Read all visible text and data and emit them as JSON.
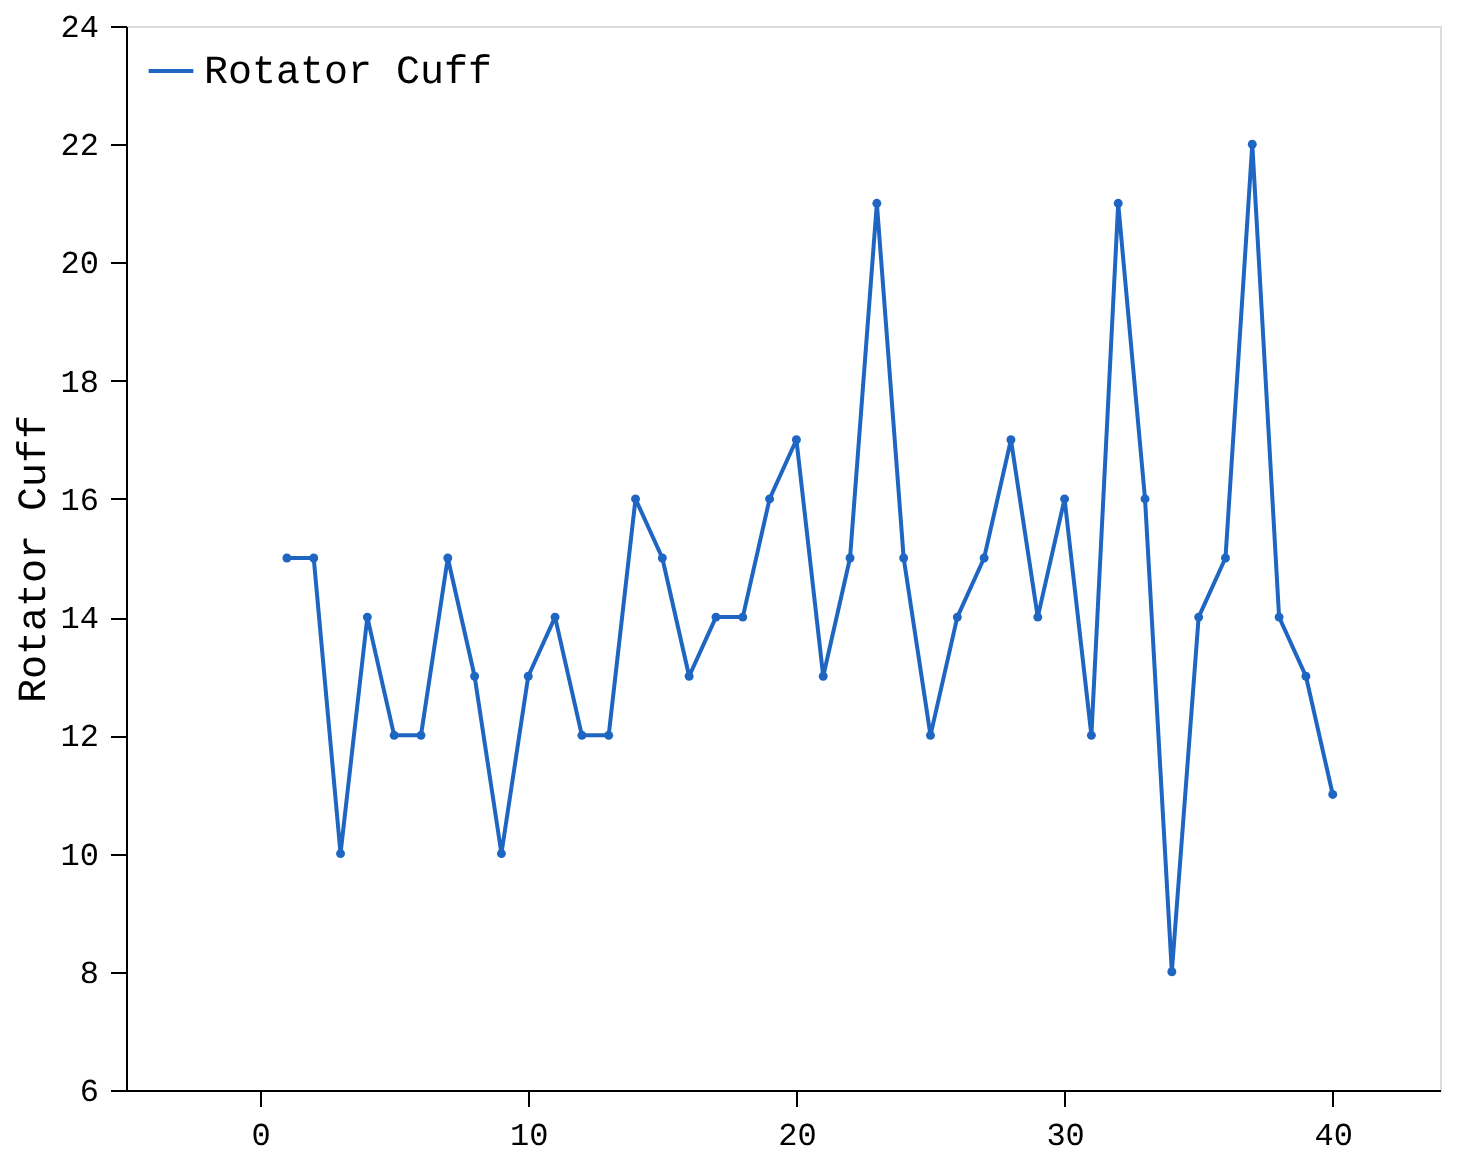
{
  "chart_data": {
    "type": "line",
    "x": [
      1,
      2,
      3,
      4,
      5,
      6,
      7,
      8,
      9,
      10,
      11,
      12,
      13,
      14,
      15,
      16,
      17,
      18,
      19,
      20,
      21,
      22,
      23,
      24,
      25,
      26,
      27,
      28,
      29,
      30,
      31,
      32,
      33,
      34,
      35,
      36,
      37,
      38,
      39,
      40
    ],
    "series": [
      {
        "name": "Rotator Cuff",
        "color": "#1f66c2",
        "values": [
          15,
          15,
          10,
          14,
          12,
          12,
          15,
          13,
          10,
          13,
          14,
          12,
          12,
          16,
          15,
          13,
          14,
          14,
          16,
          17,
          13,
          15,
          21,
          15,
          12,
          14,
          15,
          17,
          14,
          16,
          12,
          21,
          16,
          8,
          14,
          15,
          22,
          14,
          13,
          11
        ]
      }
    ],
    "ylabel": "Rotator Cuff",
    "xlim": [
      -5,
      44
    ],
    "xticks": [
      0,
      10,
      20,
      30,
      40
    ],
    "ylim": [
      6,
      24
    ],
    "yticks": [
      6,
      8,
      10,
      12,
      14,
      16,
      18,
      20,
      22,
      24
    ],
    "marker": "circle",
    "line_style": "solid",
    "grid": false,
    "legend": "top left"
  }
}
